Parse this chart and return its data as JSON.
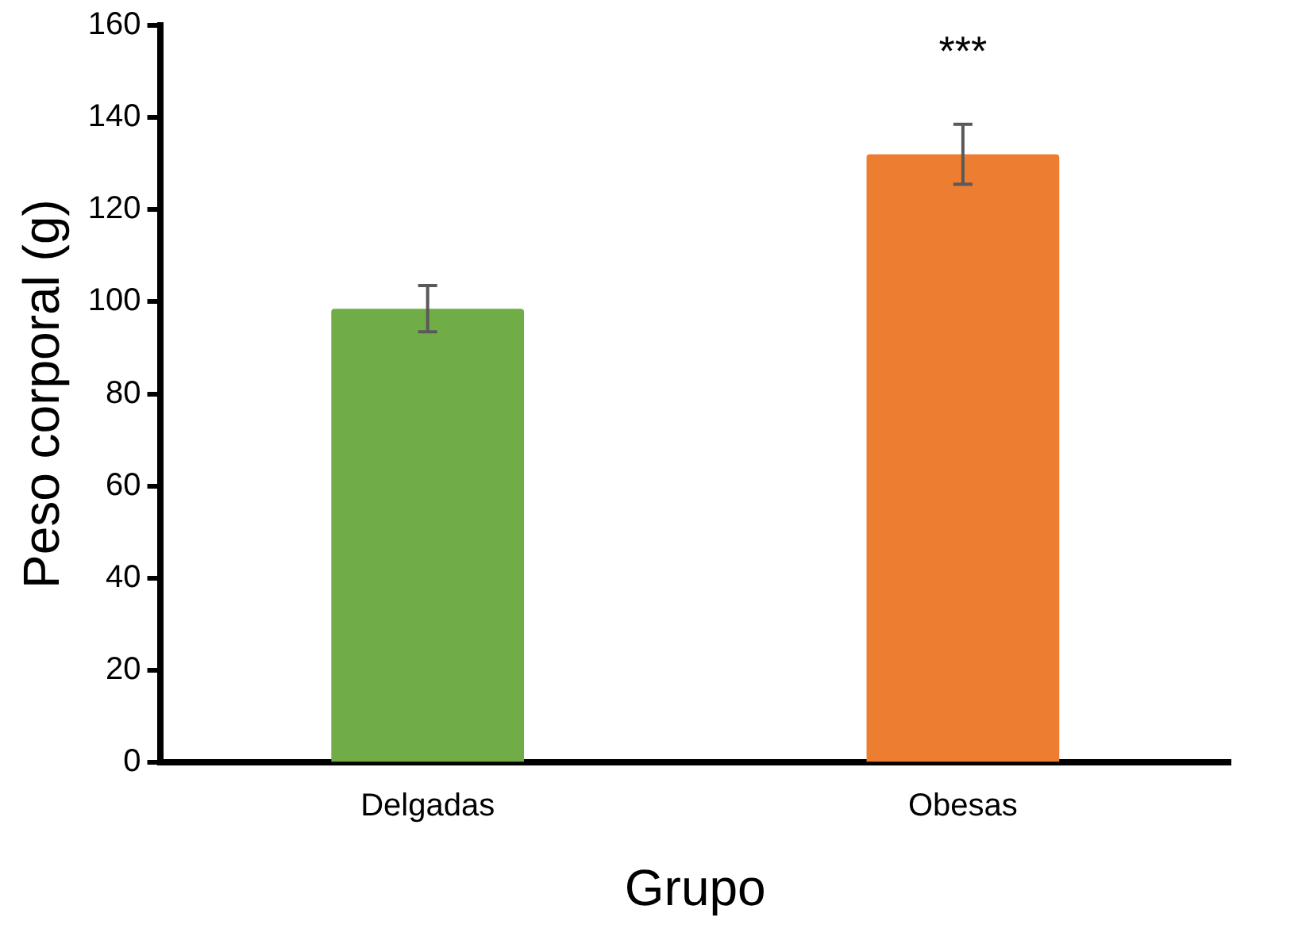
{
  "chart_data": {
    "type": "bar",
    "xlabel": "Grupo",
    "ylabel": "Peso corporal (g)",
    "categories": [
      "Delgadas",
      "Obesas"
    ],
    "values": [
      98.5,
      132
    ],
    "colors": [
      "#70ad47",
      "#ed7d31"
    ],
    "errors": [
      5,
      6.5
    ],
    "ylim": [
      0,
      160
    ],
    "yticks": [
      0,
      20,
      40,
      60,
      80,
      100,
      120,
      140,
      160
    ],
    "grid": false,
    "legend": false,
    "annotations": [
      "***"
    ]
  }
}
